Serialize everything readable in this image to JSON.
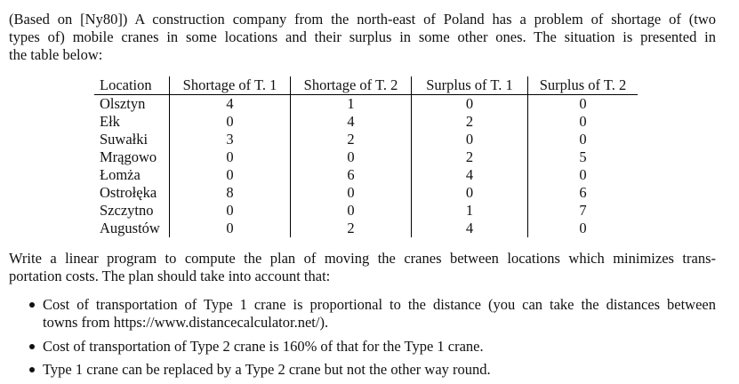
{
  "intro": {
    "lines": [
      "(Based on [Ny80]) A construction company from the north-east of Poland has a problem of shortage of (two",
      "types of) mobile cranes in some locations and their surplus in some other ones. The situation is presented in",
      "the table below:"
    ]
  },
  "table": {
    "header": [
      "Location",
      "Shortage of T. 1",
      "Shortage of T. 2",
      "Surplus of T. 1",
      "Surplus of T. 2"
    ],
    "rows": [
      [
        "Olsztyn",
        4,
        1,
        0,
        0
      ],
      [
        "Ełk",
        0,
        4,
        2,
        0
      ],
      [
        "Suwałki",
        3,
        2,
        0,
        0
      ],
      [
        "Mrągowo",
        0,
        0,
        2,
        5
      ],
      [
        "Łomża",
        0,
        6,
        4,
        0
      ],
      [
        "Ostrołęka",
        8,
        0,
        0,
        6
      ],
      [
        "Szczytno",
        0,
        0,
        1,
        7
      ],
      [
        "Augustów",
        0,
        2,
        4,
        0
      ]
    ]
  },
  "task": {
    "lines": [
      "Write a linear program to compute the plan of moving the cranes between locations which minimizes trans-",
      "portation costs. The plan should take into account that:"
    ]
  },
  "bullets": [
    [
      "Cost of transportation of Type 1 crane is proportional to the distance (you can take the distances between",
      "towns from https://www.distancecalculator.net/)."
    ],
    [
      "Cost of transportation of Type 2 crane is 160% of that for the Type 1 crane."
    ],
    [
      "Type 1 crane can be replaced by a Type 2 crane but not the other way round."
    ]
  ]
}
